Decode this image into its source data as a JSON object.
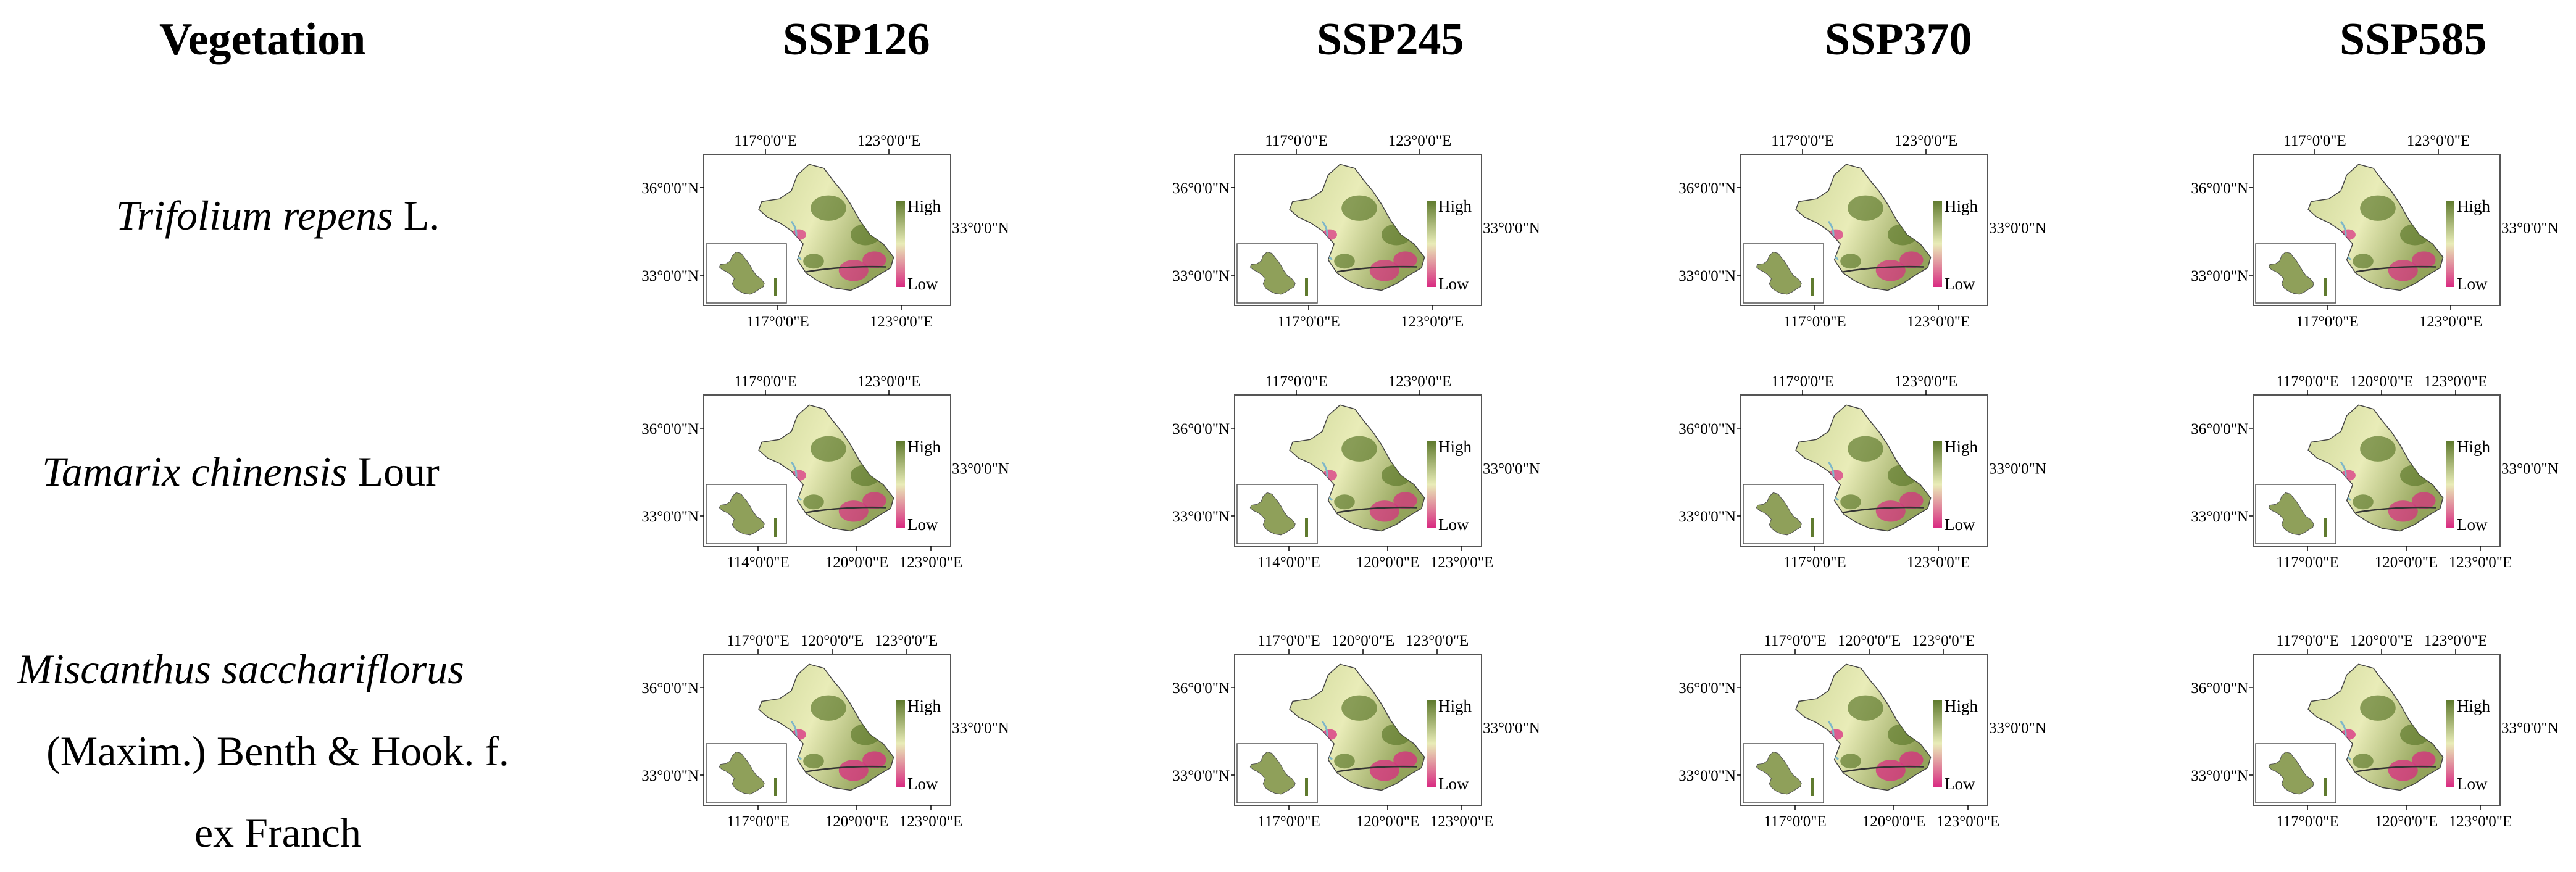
{
  "headers": [
    "Vegetation",
    "SSP126",
    "SSP245",
    "SSP370",
    "SSP585"
  ],
  "rows": [
    {
      "lines": [
        {
          "italic": "Trifolium repens",
          "plain": " L."
        }
      ]
    },
    {
      "lines": [
        {
          "italic": "Tamarix chinensis",
          "plain": " Lour"
        }
      ]
    },
    {
      "lines": [
        {
          "italic": "Miscanthus sacchariflorus",
          "plain": ""
        },
        {
          "italic": "",
          "plain": "(Maxim.) Benth & Hook. f."
        },
        {
          "italic": "",
          "plain": "ex Franch"
        }
      ]
    }
  ],
  "legend": {
    "high": "High",
    "low": "Low"
  },
  "maps": [
    [
      {
        "top": [
          "117°0'0\"E",
          "123°0'0\"E"
        ],
        "bottom": [
          "117°0'0\"E",
          "123°0'0\"E"
        ],
        "left": [
          "36°0'0\"N",
          "33°0'0\"N"
        ],
        "right": "33°0'0\"N"
      },
      {
        "top": [
          "117°0'0\"E",
          "123°0'0\"E"
        ],
        "bottom": [
          "117°0'0\"E",
          "123°0'0\"E"
        ],
        "left": [
          "36°0'0\"N",
          "33°0'0\"N"
        ],
        "right": "33°0'0\"N"
      },
      {
        "top": [
          "117°0'0\"E",
          "123°0'0\"E"
        ],
        "bottom": [
          "117°0'0\"E",
          "123°0'0\"E"
        ],
        "left": [
          "36°0'0\"N",
          "33°0'0\"N"
        ],
        "right": "33°0'0\"N"
      },
      {
        "top": [
          "117°0'0\"E",
          "123°0'0\"E"
        ],
        "bottom": [
          "117°0'0\"E",
          "123°0'0\"E"
        ],
        "left": [
          "36°0'0\"N",
          "33°0'0\"N"
        ],
        "right": "33°0'0\"N"
      }
    ],
    [
      {
        "top": [
          "117°0'0\"E",
          "123°0'0\"E"
        ],
        "bottom": [
          "114°0'0\"E",
          "120°0'0\"E",
          "123°0'0\"E"
        ],
        "left": [
          "36°0'0\"N",
          "33°0'0\"N"
        ],
        "right": "33°0'0\"N"
      },
      {
        "top": [
          "117°0'0\"E",
          "123°0'0\"E"
        ],
        "bottom": [
          "114°0'0\"E",
          "120°0'0\"E",
          "123°0'0\"E"
        ],
        "left": [
          "36°0'0\"N",
          "33°0'0\"N"
        ],
        "right": "33°0'0\"N"
      },
      {
        "top": [
          "117°0'0\"E",
          "123°0'0\"E"
        ],
        "bottom": [
          "117°0'0\"E",
          "123°0'0\"E"
        ],
        "left": [
          "36°0'0\"N",
          "33°0'0\"N"
        ],
        "right": "33°0'0\"N"
      },
      {
        "top": [
          "117°0'0\"E",
          "120°0'0\"E",
          "123°0'0\"E"
        ],
        "bottom": [
          "117°0'0\"E",
          "120°0'0\"E",
          "123°0'0\"E"
        ],
        "left": [
          "36°0'0\"N",
          "33°0'0\"N"
        ],
        "right": "33°0'0\"N"
      }
    ],
    [
      {
        "top": [
          "117°0'0\"E",
          "120°0'0\"E",
          "123°0'0\"E"
        ],
        "bottom": [
          "117°0'0\"E",
          "120°0'0\"E",
          "123°0'0\"E"
        ],
        "left": [
          "36°0'0\"N",
          "33°0'0\"N"
        ],
        "right": "33°0'0\"N"
      },
      {
        "top": [
          "117°0'0\"E",
          "120°0'0\"E",
          "123°0'0\"E"
        ],
        "bottom": [
          "117°0'0\"E",
          "120°0'0\"E",
          "123°0'0\"E"
        ],
        "left": [
          "36°0'0\"N",
          "33°0'0\"N"
        ],
        "right": "33°0'0\"N"
      },
      {
        "top": [
          "117°0'0\"E",
          "120°0'0\"E",
          "123°0'0\"E"
        ],
        "bottom": [
          "117°0'0\"E",
          "120°0'0\"E",
          "123°0'0\"E"
        ],
        "left": [
          "36°0'0\"N",
          "33°0'0\"N"
        ],
        "right": "33°0'0\"N"
      },
      {
        "top": [
          "117°0'0\"E",
          "120°0'0\"E",
          "123°0'0\"E"
        ],
        "bottom": [
          "117°0'0\"E",
          "120°0'0\"E",
          "123°0'0\"E"
        ],
        "left": [
          "36°0'0\"N",
          "33°0'0\"N"
        ],
        "right": "33°0'0\"N"
      }
    ]
  ],
  "colors": {
    "high": "#5f7a2e",
    "mid": "#e9ecb8",
    "low": "#d92b82",
    "frame": "#555555",
    "water": "#7fb7c9"
  }
}
